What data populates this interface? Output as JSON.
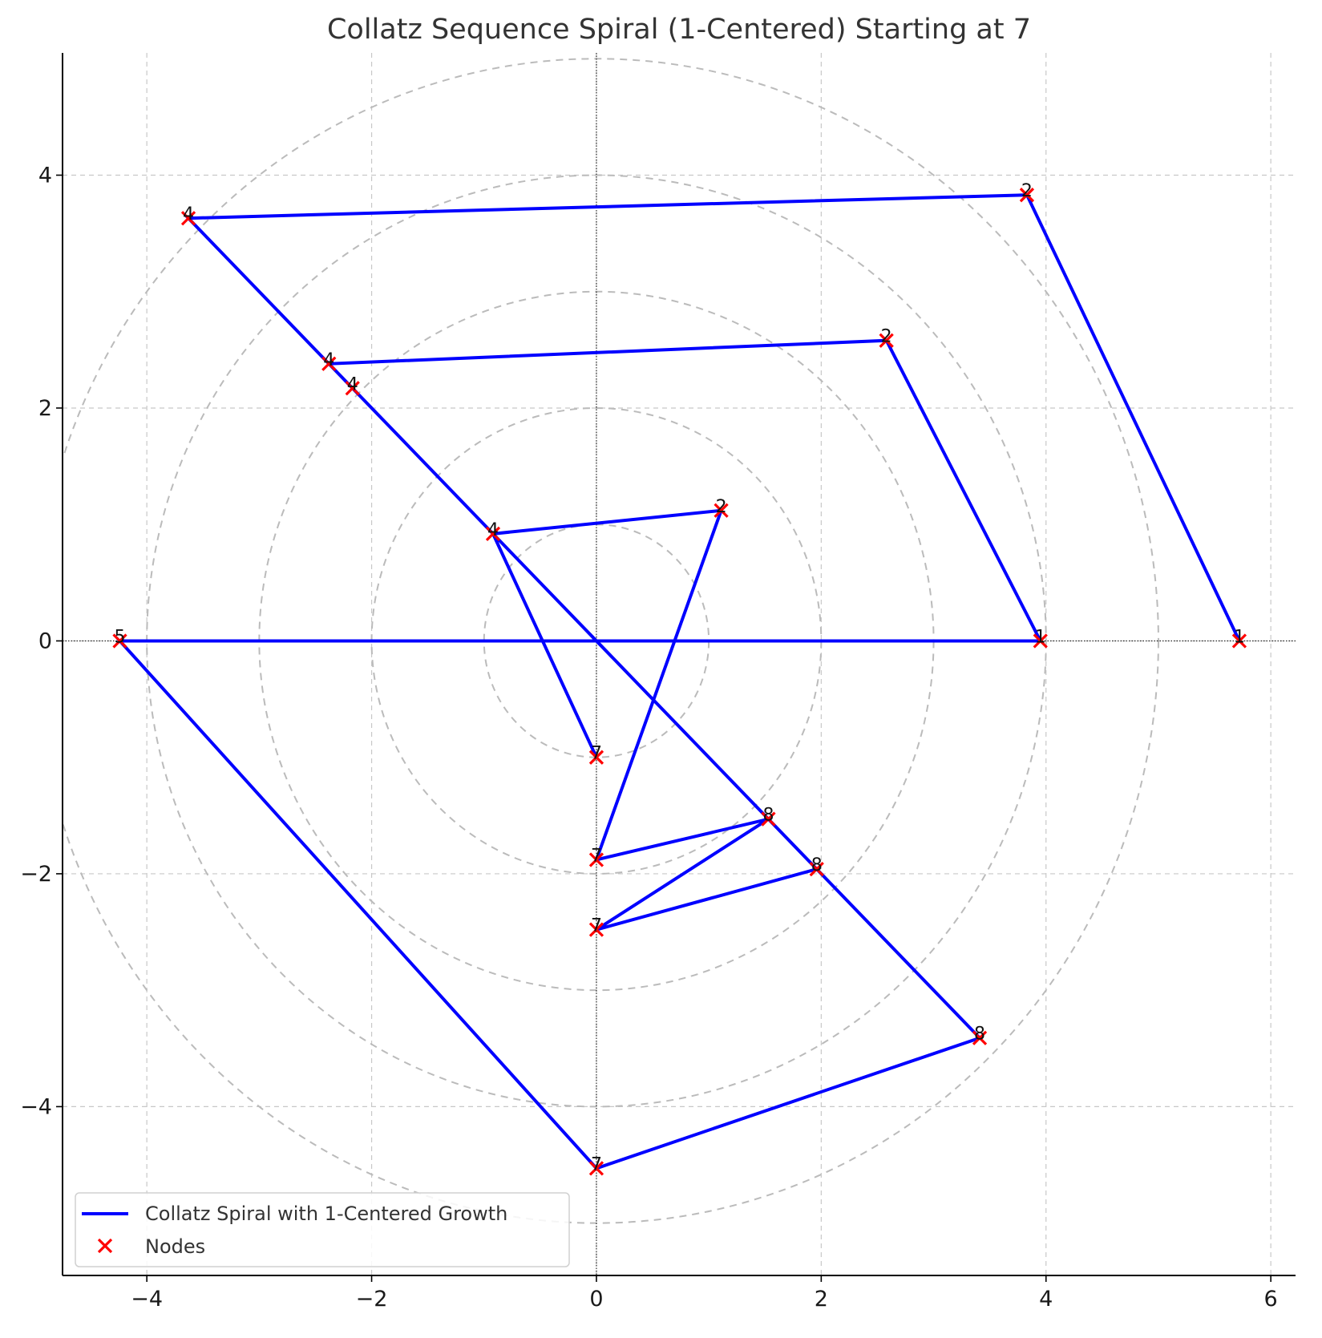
{
  "chart_data": {
    "type": "line",
    "title": "Collatz Sequence Spiral (1-Centered) Starting at 7",
    "xlabel": "",
    "ylabel": "",
    "xlim": [
      -4.75,
      6.22
    ],
    "ylim": [
      -5.45,
      5.05
    ],
    "xticks": [
      -4,
      -2,
      0,
      2,
      4,
      6
    ],
    "yticks": [
      -4,
      -2,
      0,
      2,
      4
    ],
    "xtick_labels": [
      "−4",
      "−2",
      "0",
      "2",
      "4",
      "6"
    ],
    "ytick_labels": [
      "−4",
      "−2",
      "0",
      "2",
      "4"
    ],
    "grid": true,
    "reference_circles": {
      "radii": [
        1,
        2,
        3,
        4,
        5
      ],
      "center": [
        0,
        0
      ],
      "style": "dashed",
      "color": "#bbbbbb"
    },
    "reference_lines": {
      "x": 0,
      "y": 0,
      "style": "dotted",
      "color": "#000000"
    },
    "legend_position": "bottom-left",
    "series": [
      {
        "name": "Collatz Spiral with 1-Centered Growth",
        "kind": "line",
        "color": "#0000ff",
        "points": [
          {
            "x": 0,
            "y": -1.0,
            "label": "7"
          },
          {
            "x": -0.92,
            "y": 0.92,
            "label": "4"
          },
          {
            "x": 1.11,
            "y": 1.12,
            "label": "2"
          },
          {
            "x": 0,
            "y": -1.88,
            "label": "7"
          },
          {
            "x": 1.53,
            "y": -1.53,
            "label": "8"
          },
          {
            "x": 0,
            "y": -2.48,
            "label": "7"
          },
          {
            "x": 1.96,
            "y": -1.96,
            "label": "8"
          },
          {
            "x": -2.17,
            "y": 2.17,
            "label": "4"
          },
          {
            "x": -2.38,
            "y": 2.38,
            "label": "4"
          },
          {
            "x": 2.58,
            "y": 2.58,
            "label": "2"
          },
          {
            "x": 3.95,
            "y": 0,
            "label": "1"
          },
          {
            "x": -4.24,
            "y": 0,
            "label": "5"
          },
          {
            "x": 0,
            "y": -4.53,
            "label": "7"
          },
          {
            "x": 3.41,
            "y": -3.41,
            "label": "8"
          },
          {
            "x": -3.63,
            "y": 3.63,
            "label": "4"
          },
          {
            "x": 3.83,
            "y": 3.83,
            "label": "2"
          },
          {
            "x": 5.72,
            "y": 0,
            "label": "1"
          }
        ]
      },
      {
        "name": "Nodes",
        "kind": "scatter",
        "marker": "x",
        "color": "#ff0000"
      }
    ]
  }
}
